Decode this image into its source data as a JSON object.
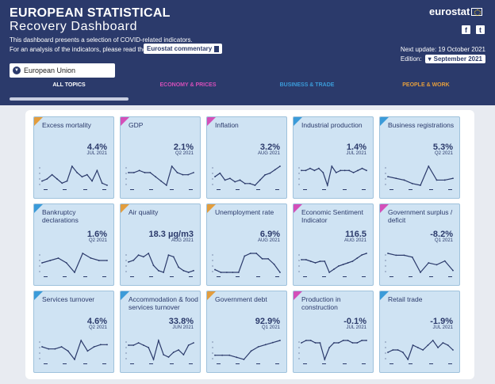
{
  "header": {
    "title_line1": "EUROPEAN STATISTICAL",
    "title_line2": "Recovery Dashboard",
    "desc_line1": "This dashboard presents a selection of COVID-related indicators.",
    "desc_line2": "For an analysis of the indicators, please read the",
    "commentary_button": "Eurostat commentary",
    "logo_text": "eurostat",
    "facebook_icon": "f",
    "twitter_icon": "t",
    "next_update": "Next update: 19 October 2021",
    "edition_label": "Edition:",
    "edition_value": "September 2021",
    "region": "European Union"
  },
  "tabs": [
    {
      "label": "ALL TOPICS",
      "color": "#ffffff"
    },
    {
      "label": "ECONOMY & PRICES",
      "color": "#d44fb9"
    },
    {
      "label": "BUSINESS & TRADE",
      "color": "#3b9bd9"
    },
    {
      "label": "PEOPLE & WORK",
      "color": "#e39d3d"
    }
  ],
  "cards": [
    {
      "title": "Excess mortality",
      "value": "4.4%",
      "date": "JUL 2021",
      "category": "people",
      "trend": [
        5,
        6,
        8,
        6,
        4,
        5,
        12,
        9,
        7,
        8,
        5,
        10,
        4,
        3
      ]
    },
    {
      "title": "GDP",
      "value": "2.1%",
      "date": "Q2 2021",
      "category": "economy",
      "trend": [
        9,
        9,
        10,
        9,
        9,
        7,
        5,
        3,
        12,
        9,
        8,
        8,
        9
      ]
    },
    {
      "title": "Inflation",
      "value": "3.2%",
      "date": "AUG 2021",
      "category": "economy",
      "trend": [
        8,
        10,
        6,
        7,
        5,
        6,
        4,
        4,
        3,
        6,
        9,
        10,
        12,
        14
      ]
    },
    {
      "title": "Industrial production",
      "value": "1.4%",
      "date": "JUL 2021",
      "category": "business",
      "trend": [
        9,
        9,
        10,
        9,
        10,
        8,
        2,
        11,
        8,
        9,
        9,
        9,
        8,
        9,
        10,
        9
      ]
    },
    {
      "title": "Business registrations",
      "value": "5.3%",
      "date": "Q2 2021",
      "category": "business",
      "trend": [
        8,
        7,
        6,
        4,
        3,
        14,
        6,
        6,
        7
      ]
    },
    {
      "title": "Bankruptcy declarations",
      "value": "1.6%",
      "date": "Q2 2021",
      "category": "business",
      "trend": [
        7,
        8,
        9,
        7,
        3,
        11,
        9,
        8,
        8
      ]
    },
    {
      "title": "Air quality",
      "value": "18.3 µg/m3",
      "date": "AUG 2021",
      "category": "people",
      "trend": [
        8,
        9,
        12,
        11,
        13,
        6,
        3,
        2,
        12,
        11,
        5,
        3,
        2,
        3
      ]
    },
    {
      "title": "Unemployment rate",
      "value": "6.9%",
      "date": "AUG 2021",
      "category": "people",
      "trend": [
        6,
        5,
        5,
        5,
        5,
        11,
        12,
        12,
        10,
        10,
        8,
        5
      ]
    },
    {
      "title": "Economic Sentiment Indicator",
      "value": "116.5",
      "date": "AUG 2021",
      "category": "economy",
      "trend": [
        10,
        10,
        9,
        8,
        9,
        9,
        2,
        4,
        6,
        7,
        8,
        9,
        11,
        13,
        14
      ]
    },
    {
      "title": "Government surplus / deficit",
      "value": "-8.2%",
      "date": "Q1 2021",
      "category": "economy",
      "trend": [
        12,
        11,
        11,
        10,
        2,
        7,
        6,
        8,
        3
      ]
    },
    {
      "title": "Services turnover",
      "value": "4.6%",
      "date": "Q2 2021",
      "category": "business",
      "trend": [
        8,
        7,
        7,
        8,
        6,
        2,
        11,
        6,
        8,
        9,
        9
      ]
    },
    {
      "title": "Accommodation & food services turnover",
      "value": "33.8%",
      "date": "JUN 2021",
      "category": "business",
      "trend": [
        8,
        8,
        9,
        8,
        7,
        2,
        10,
        4,
        3,
        5,
        6,
        4,
        8,
        9
      ]
    },
    {
      "title": "Government debt",
      "value": "92.9%",
      "date": "Q1 2021",
      "category": "people",
      "trend": [
        5,
        5,
        5,
        4,
        3,
        7,
        9,
        10,
        11,
        12
      ]
    },
    {
      "title": "Production in construction",
      "value": "-0.1%",
      "date": "JUL 2021",
      "category": "economy",
      "trend": [
        9,
        10,
        10,
        9,
        9,
        2,
        7,
        9,
        9,
        10,
        10,
        9,
        9,
        10,
        10
      ]
    },
    {
      "title": "Retail trade",
      "value": "-1.9%",
      "date": "JUL 2021",
      "category": "business",
      "trend": [
        7,
        8,
        8,
        7,
        4,
        10,
        9,
        8,
        10,
        12,
        9,
        11,
        10,
        8
      ]
    }
  ],
  "colors": {
    "header_bg": "#2b3a6b",
    "economy": "#d44fb9",
    "business": "#3b9bd9",
    "people": "#e39d3d",
    "card_bg": "#cfe3f3",
    "line": "#2b3a6b"
  }
}
